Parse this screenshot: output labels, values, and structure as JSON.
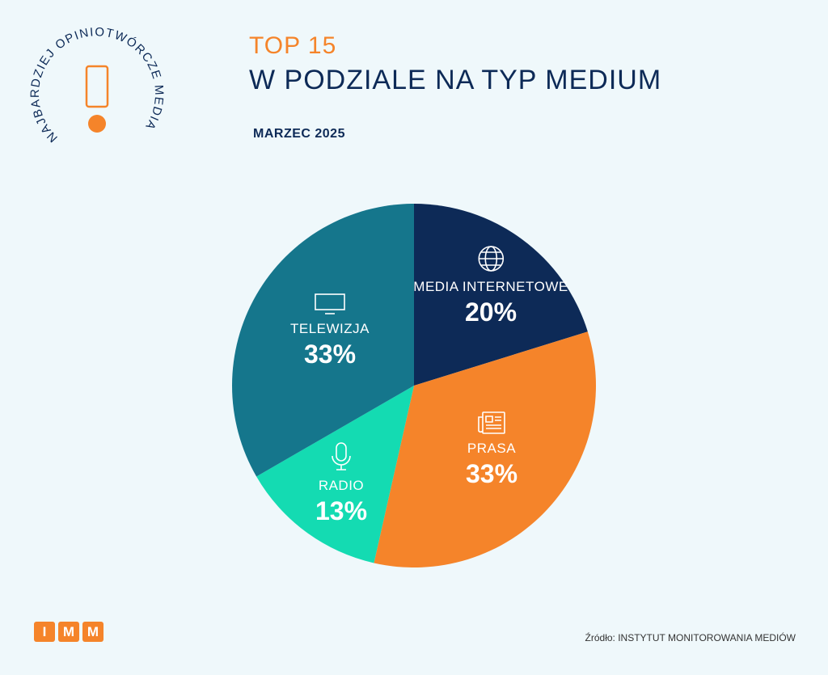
{
  "logo": {
    "arc_text": "NAJBARDZIEJ OPINIOTWÓRCZE MEDIA",
    "brand_letters": [
      "I",
      "M",
      "M"
    ]
  },
  "header": {
    "title_top": "TOP 15",
    "title_main": "W PODZIALE NA TYP MEDIUM",
    "date": "MARZEC 2025"
  },
  "chart_data": {
    "type": "pie",
    "start": "top",
    "direction": "clockwise",
    "categories": [
      "MEDIA INTERNETOWE",
      "PRASA",
      "RADIO",
      "TELEWIZJA"
    ],
    "values": [
      20,
      33,
      13,
      33
    ],
    "labels": [
      "20%",
      "33%",
      "13%",
      "33%"
    ],
    "icons": [
      "globe-icon",
      "newspaper-icon",
      "microphone-icon",
      "tv-icon"
    ],
    "colors": [
      "#0d2a57",
      "#f5842a",
      "#14dbb2",
      "#15768c"
    ]
  },
  "footer": {
    "source": "Źródło: INSTYTUT MONITOROWANIA MEDIÓW"
  }
}
